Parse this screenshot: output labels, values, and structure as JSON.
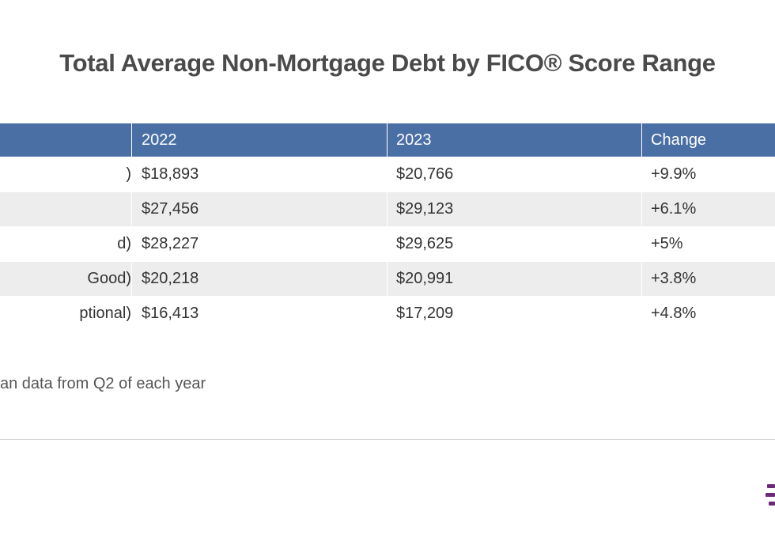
{
  "chart_data": {
    "type": "table",
    "title": "Total Average Non-Mortgage Debt by FICO® Score Range",
    "columns": [
      "",
      "2022",
      "2023",
      "Change"
    ],
    "rows": [
      {
        "label": ")",
        "y2022": "$18,893",
        "y2023": "$20,766",
        "change": "+9.9%"
      },
      {
        "label": "",
        "y2022": "$27,456",
        "y2023": "$29,123",
        "change": "+6.1%"
      },
      {
        "label": "d)",
        "y2022": "$28,227",
        "y2023": "$29,625",
        "change": "+5%"
      },
      {
        "label": "Good)",
        "y2022": "$20,218",
        "y2023": "$20,991",
        "change": "+3.8%"
      },
      {
        "label": "ptional)",
        "y2022": "$16,413",
        "y2023": "$17,209",
        "change": "+4.8%"
      }
    ],
    "note": "an data from Q2 of each year"
  },
  "colors": {
    "header_bg": "#4a6fa5",
    "alt_row_bg": "#ededed",
    "logo": "#6b2a78"
  }
}
